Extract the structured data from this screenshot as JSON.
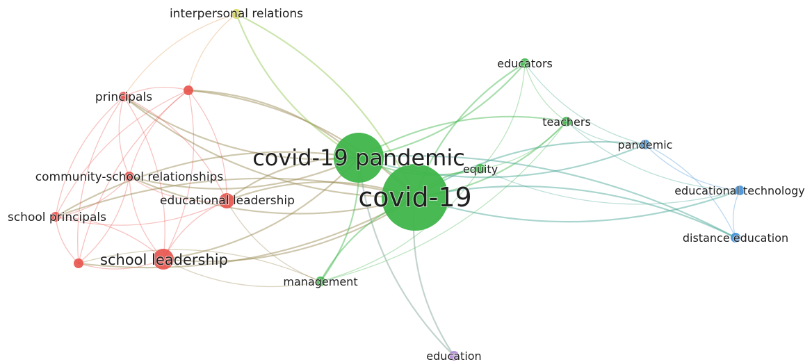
{
  "colors": {
    "red_cluster": "#e8534d",
    "green_cluster": "#3fb54a",
    "blue_cluster": "#3f8fd6",
    "yellow_cluster": "#d6d64a",
    "purple_cluster": "#b48ad6",
    "label": "#1f1f1f",
    "background": "#ffffff"
  },
  "network": {
    "nodes": [
      {
        "id": "interpersonal-relations",
        "label": "interpersonal relations",
        "cluster": "yellow"
      },
      {
        "id": "principals",
        "label": "principals",
        "cluster": "red"
      },
      {
        "id": "unlabeled-red",
        "label": "",
        "cluster": "red"
      },
      {
        "id": "community-school-relationships",
        "label": "community-school relationships",
        "cluster": "red"
      },
      {
        "id": "educational-leadership",
        "label": "educational leadership",
        "cluster": "red"
      },
      {
        "id": "school-principals",
        "label": "school principals",
        "cluster": "red"
      },
      {
        "id": "school-leadership",
        "label": "school leadership",
        "cluster": "red"
      },
      {
        "id": "unlabeled-red-2",
        "label": "",
        "cluster": "red"
      },
      {
        "id": "covid-19-pandemic",
        "label": "covid-19 pandemic",
        "cluster": "green"
      },
      {
        "id": "covid-19",
        "label": "covid-19",
        "cluster": "green"
      },
      {
        "id": "educators",
        "label": "educators",
        "cluster": "green"
      },
      {
        "id": "teachers",
        "label": "teachers",
        "cluster": "green"
      },
      {
        "id": "equity",
        "label": "equity",
        "cluster": "green"
      },
      {
        "id": "management",
        "label": "management",
        "cluster": "green"
      },
      {
        "id": "pandemic",
        "label": "pandemic",
        "cluster": "blue"
      },
      {
        "id": "educational-technology",
        "label": "educational technology",
        "cluster": "blue"
      },
      {
        "id": "distance-education",
        "label": "distance education",
        "cluster": "blue"
      },
      {
        "id": "education",
        "label": "education",
        "cluster": "purple"
      }
    ],
    "edges": [
      [
        "covid-19",
        "covid-19-pandemic"
      ],
      [
        "covid-19",
        "school-leadership"
      ],
      [
        "covid-19",
        "educational-leadership"
      ],
      [
        "covid-19",
        "principals"
      ],
      [
        "covid-19",
        "unlabeled-red"
      ],
      [
        "covid-19",
        "community-school-relationships"
      ],
      [
        "covid-19",
        "school-principals"
      ],
      [
        "covid-19",
        "unlabeled-red-2"
      ],
      [
        "covid-19",
        "interpersonal-relations"
      ],
      [
        "covid-19",
        "educators"
      ],
      [
        "covid-19",
        "teachers"
      ],
      [
        "covid-19",
        "equity"
      ],
      [
        "covid-19",
        "management"
      ],
      [
        "covid-19",
        "pandemic"
      ],
      [
        "covid-19",
        "educational-technology"
      ],
      [
        "covid-19",
        "distance-education"
      ],
      [
        "covid-19",
        "education"
      ],
      [
        "covid-19-pandemic",
        "school-leadership"
      ],
      [
        "covid-19-pandemic",
        "educational-leadership"
      ],
      [
        "covid-19-pandemic",
        "principals"
      ],
      [
        "covid-19-pandemic",
        "unlabeled-red"
      ],
      [
        "covid-19-pandemic",
        "community-school-relationships"
      ],
      [
        "covid-19-pandemic",
        "school-principals"
      ],
      [
        "covid-19-pandemic",
        "interpersonal-relations"
      ],
      [
        "covid-19-pandemic",
        "educators"
      ],
      [
        "covid-19-pandemic",
        "teachers"
      ],
      [
        "covid-19-pandemic",
        "equity"
      ],
      [
        "covid-19-pandemic",
        "management"
      ],
      [
        "covid-19-pandemic",
        "pandemic"
      ],
      [
        "covid-19-pandemic",
        "distance-education"
      ],
      [
        "covid-19-pandemic",
        "education"
      ],
      [
        "principals",
        "unlabeled-red"
      ],
      [
        "principals",
        "community-school-relationships"
      ],
      [
        "principals",
        "educational-leadership"
      ],
      [
        "principals",
        "school-principals"
      ],
      [
        "principals",
        "school-leadership"
      ],
      [
        "principals",
        "unlabeled-red-2"
      ],
      [
        "principals",
        "interpersonal-relations"
      ],
      [
        "unlabeled-red",
        "community-school-relationships"
      ],
      [
        "unlabeled-red",
        "educational-leadership"
      ],
      [
        "unlabeled-red",
        "school-principals"
      ],
      [
        "unlabeled-red",
        "school-leadership"
      ],
      [
        "unlabeled-red",
        "unlabeled-red-2"
      ],
      [
        "unlabeled-red",
        "interpersonal-relations"
      ],
      [
        "community-school-relationships",
        "educational-leadership"
      ],
      [
        "community-school-relationships",
        "school-principals"
      ],
      [
        "community-school-relationships",
        "school-leadership"
      ],
      [
        "community-school-relationships",
        "unlabeled-red-2"
      ],
      [
        "educational-leadership",
        "school-leadership"
      ],
      [
        "educational-leadership",
        "school-principals"
      ],
      [
        "educational-leadership",
        "management"
      ],
      [
        "school-principals",
        "school-leadership"
      ],
      [
        "school-principals",
        "unlabeled-red-2"
      ],
      [
        "school-leadership",
        "unlabeled-red-2"
      ],
      [
        "school-leadership",
        "management"
      ],
      [
        "unlabeled-red-2",
        "management"
      ],
      [
        "educators",
        "teachers"
      ],
      [
        "educators",
        "equity"
      ],
      [
        "educators",
        "pandemic"
      ],
      [
        "teachers",
        "equity"
      ],
      [
        "teachers",
        "pandemic"
      ],
      [
        "teachers",
        "management"
      ],
      [
        "teachers",
        "educational-technology"
      ],
      [
        "equity",
        "management"
      ],
      [
        "pandemic",
        "educational-technology"
      ],
      [
        "pandemic",
        "distance-education"
      ],
      [
        "educational-technology",
        "distance-education"
      ],
      [
        "educational-technology",
        "equity"
      ]
    ]
  }
}
